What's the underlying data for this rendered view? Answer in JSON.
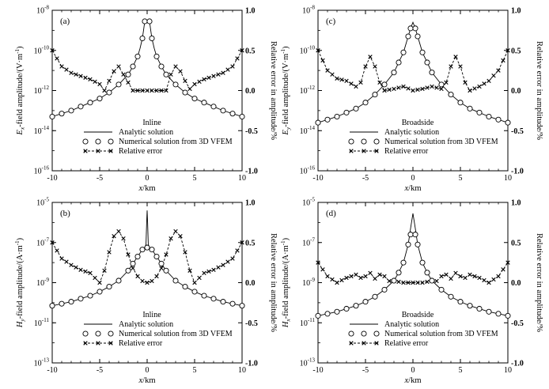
{
  "chart_data": [
    {
      "type": "line",
      "panel_label": "(a)",
      "ylabel": "Ex-field amplitude/(V·m⁻¹)",
      "ylabel_var": "E",
      "ylabel_sub": "x",
      "ylabel_rest": "-field amplitude/(V·m",
      "ylabel_unit_sup": "-1",
      "ylabel_close": ")",
      "y2label": "Relative error in amplitude/%",
      "xlabel": "x/km",
      "xlim": [
        -10,
        10
      ],
      "ylim_log_exp": [
        -16,
        -8
      ],
      "y_ticks": [
        {
          "base": "10",
          "exp": "-8"
        },
        {
          "base": "10",
          "exp": "-10"
        },
        {
          "base": "10",
          "exp": "-12"
        },
        {
          "base": "10",
          "exp": "-14"
        },
        {
          "base": "10",
          "exp": "-16"
        }
      ],
      "y2lim": [
        -1,
        1
      ],
      "y2_ticks": [
        "1.0",
        "0.5",
        "0.0",
        "-0.5",
        "-1.0"
      ],
      "x_ticks": [
        "-10",
        "-5",
        "0",
        "5",
        "10"
      ],
      "legend_title": "Inline",
      "legend": [
        "Analytic solution",
        "Numerical solution from 3D VFEM",
        "Relative error"
      ],
      "series": [
        {
          "name": "Analytic solution",
          "axis": "log",
          "x": [
            -10,
            -9,
            -8,
            -7,
            -6,
            -5,
            -4,
            -3,
            -2,
            -1.5,
            -1,
            -0.75,
            -0.5,
            -0.35,
            -0.25,
            0,
            0.25,
            0.35,
            0.5,
            0.75,
            1,
            1.5,
            2,
            3,
            4,
            5,
            6,
            7,
            8,
            9,
            10
          ],
          "log10": [
            -13.3,
            -13.15,
            -13.0,
            -12.8,
            -12.6,
            -12.4,
            -12.1,
            -11.7,
            -11.2,
            -10.8,
            -10.3,
            -9.9,
            -9.4,
            -8.9,
            -8.55,
            -8.55,
            -8.55,
            -8.9,
            -9.4,
            -9.9,
            -10.3,
            -10.8,
            -11.2,
            -11.7,
            -12.1,
            -12.4,
            -12.6,
            -12.8,
            -13.0,
            -13.15,
            -13.3
          ]
        },
        {
          "name": "Numerical solution from 3D VFEM",
          "axis": "log",
          "x": [
            -10,
            -9,
            -8,
            -7,
            -6,
            -5,
            -4,
            -3,
            -2,
            -1.5,
            -1,
            -0.5,
            -0.25,
            0.25,
            0.5,
            1,
            1.5,
            2,
            3,
            4,
            5,
            6,
            7,
            8,
            9,
            10
          ],
          "log10": [
            -13.3,
            -13.15,
            -13.0,
            -12.8,
            -12.6,
            -12.4,
            -12.1,
            -11.7,
            -11.2,
            -10.8,
            -10.3,
            -9.4,
            -8.55,
            -8.55,
            -9.4,
            -10.3,
            -10.8,
            -11.2,
            -11.7,
            -12.1,
            -12.4,
            -12.6,
            -12.8,
            -13.0,
            -13.15,
            -13.3
          ]
        },
        {
          "name": "Relative error",
          "axis": "linear",
          "x": [
            -10,
            -9,
            -8,
            -7,
            -6,
            -5,
            -4.5,
            -4,
            -3.5,
            -3,
            -2.5,
            -2,
            -1.5,
            -1,
            -0.5,
            0,
            0.5,
            1,
            1.5,
            2,
            2.5,
            3,
            3.5,
            4,
            4.5,
            5,
            6,
            7,
            8,
            9,
            10
          ],
          "values": [
            0.5,
            0.3,
            0.22,
            0.18,
            0.14,
            0.08,
            0.0,
            0.12,
            0.24,
            0.3,
            0.2,
            0.1,
            0.0,
            0.0,
            0.0,
            0.0,
            0.0,
            0.0,
            0.0,
            0.0,
            0.2,
            0.3,
            0.24,
            0.12,
            0.02,
            0.08,
            0.14,
            0.18,
            0.22,
            0.3,
            0.5
          ]
        }
      ]
    },
    {
      "type": "line",
      "panel_label": "(c)",
      "ylabel": "Ey-field amplitude/(V·m⁻¹)",
      "ylabel_var": "E",
      "ylabel_sub": "y",
      "ylabel_rest": "-field amplitude/(V·m",
      "ylabel_unit_sup": "-1",
      "ylabel_close": ")",
      "y2label": "Relative error in amplitude/%",
      "xlabel": "x/km",
      "xlim": [
        -10,
        10
      ],
      "ylim_log_exp": [
        -16,
        -8
      ],
      "y_ticks": [
        {
          "base": "10",
          "exp": "-8"
        },
        {
          "base": "10",
          "exp": "-10"
        },
        {
          "base": "10",
          "exp": "-12"
        },
        {
          "base": "10",
          "exp": "-14"
        },
        {
          "base": "10",
          "exp": "-16"
        }
      ],
      "y2lim": [
        -1,
        1
      ],
      "y2_ticks": [
        "1.0",
        "0.5",
        "0.0",
        "-0.5",
        "-1.0"
      ],
      "x_ticks": [
        "-10",
        "-5",
        "0",
        "5",
        "10"
      ],
      "legend_title": "Broadside",
      "legend": [
        "Analytic solution",
        "Numerical solution from 3D VFEM",
        "Relative error"
      ],
      "series": [
        {
          "name": "Analytic solution",
          "axis": "log",
          "x": [
            -10,
            -9,
            -8,
            -7,
            -6,
            -5,
            -4,
            -3,
            -2,
            -1.5,
            -1,
            -0.5,
            -0.25,
            0,
            0.25,
            0.5,
            1,
            1.5,
            2,
            3,
            4,
            5,
            6,
            7,
            8,
            9,
            10
          ],
          "log10": [
            -13.6,
            -13.45,
            -13.3,
            -13.1,
            -12.9,
            -12.6,
            -12.2,
            -11.7,
            -11.1,
            -10.6,
            -10.1,
            -9.3,
            -8.9,
            -8.6,
            -8.9,
            -9.3,
            -10.1,
            -10.6,
            -11.1,
            -11.7,
            -12.2,
            -12.6,
            -12.9,
            -13.1,
            -13.3,
            -13.45,
            -13.6
          ]
        },
        {
          "name": "Numerical solution from 3D VFEM",
          "axis": "log",
          "x": [
            -10,
            -9,
            -8,
            -7,
            -6,
            -5,
            -4,
            -3,
            -2,
            -1.5,
            -1,
            -0.5,
            -0.25,
            0.25,
            0.5,
            1,
            1.5,
            2,
            3,
            4,
            5,
            6,
            7,
            8,
            9,
            10
          ],
          "log10": [
            -13.6,
            -13.45,
            -13.3,
            -13.1,
            -12.9,
            -12.6,
            -12.2,
            -11.7,
            -11.1,
            -10.6,
            -10.1,
            -9.3,
            -8.9,
            -8.9,
            -9.3,
            -10.1,
            -10.6,
            -11.1,
            -11.7,
            -12.2,
            -12.6,
            -12.9,
            -13.1,
            -13.3,
            -13.45,
            -13.6
          ]
        },
        {
          "name": "Relative error",
          "axis": "linear",
          "x": [
            -10,
            -9,
            -8,
            -7,
            -6,
            -5.5,
            -5,
            -4.5,
            -4,
            -3.5,
            -3,
            -2,
            -1,
            0,
            1,
            2,
            3,
            3.5,
            4,
            4.5,
            5,
            5.5,
            6,
            7,
            8,
            9,
            10
          ],
          "values": [
            0.5,
            0.25,
            0.15,
            0.12,
            0.05,
            0.1,
            0.3,
            0.42,
            0.3,
            0.1,
            0.0,
            0.02,
            0.05,
            0.0,
            0.02,
            0.05,
            0.02,
            0.1,
            0.3,
            0.42,
            0.3,
            0.1,
            0.0,
            0.05,
            0.12,
            0.25,
            0.5
          ]
        }
      ]
    },
    {
      "type": "line",
      "panel_label": "(b)",
      "ylabel": "Hy-field amplitude/(A·m⁻¹)",
      "ylabel_var": "H",
      "ylabel_sub": "y",
      "ylabel_rest": "-field amplitude/(A·m",
      "ylabel_unit_sup": "-1",
      "ylabel_close": ")",
      "y2label": "Relative error in amplitude/%",
      "xlabel": "x/km",
      "xlim": [
        -10,
        10
      ],
      "ylim_log_exp": [
        -13,
        -5
      ],
      "y_ticks": [
        {
          "base": "10",
          "exp": "-5"
        },
        {
          "base": "10",
          "exp": "-7"
        },
        {
          "base": "10",
          "exp": "-9"
        },
        {
          "base": "10",
          "exp": "-11"
        },
        {
          "base": "10",
          "exp": "-13"
        }
      ],
      "y2lim": [
        -1,
        1
      ],
      "y2_ticks": [
        "1.0",
        "0.5",
        "0.0",
        "-0.5",
        "-1.0"
      ],
      "x_ticks": [
        "-10",
        "-5",
        "0",
        "5",
        "10"
      ],
      "legend_title": "Inline",
      "legend": [
        "Analytic solution",
        "Numerical solution from 3D VFEM",
        "Relative error"
      ],
      "series": [
        {
          "name": "Analytic solution",
          "axis": "log",
          "x": [
            -10,
            -9,
            -8,
            -7,
            -6,
            -5,
            -4,
            -3,
            -2,
            -1.5,
            -1,
            -0.5,
            -0.25,
            -0.12,
            -0.05,
            0,
            0.05,
            0.12,
            0.25,
            0.5,
            1,
            1.5,
            2,
            3,
            4,
            5,
            6,
            7,
            8,
            9,
            10
          ],
          "log10": [
            -10.15,
            -10.05,
            -9.95,
            -9.8,
            -9.65,
            -9.45,
            -9.2,
            -8.9,
            -8.4,
            -8.05,
            -7.7,
            -7.35,
            -7.25,
            -7.1,
            -6.0,
            -5.4,
            -6.0,
            -7.1,
            -7.25,
            -7.35,
            -7.7,
            -8.05,
            -8.4,
            -8.9,
            -9.2,
            -9.45,
            -9.65,
            -9.8,
            -9.95,
            -10.05,
            -10.15
          ]
        },
        {
          "name": "Numerical solution from 3D VFEM",
          "axis": "log",
          "x": [
            -10,
            -9,
            -8,
            -7,
            -6,
            -5,
            -4,
            -3,
            -2,
            -1.5,
            -1,
            -0.5,
            0,
            0.5,
            1,
            1.5,
            2,
            3,
            4,
            5,
            6,
            7,
            8,
            9,
            10
          ],
          "log10": [
            -10.15,
            -10.05,
            -9.95,
            -9.8,
            -9.65,
            -9.45,
            -9.2,
            -8.9,
            -8.4,
            -8.05,
            -7.7,
            -7.35,
            -7.25,
            -7.35,
            -7.7,
            -8.05,
            -8.4,
            -8.9,
            -9.2,
            -9.45,
            -9.65,
            -9.8,
            -9.95,
            -10.05,
            -10.15
          ]
        },
        {
          "name": "Relative error",
          "axis": "linear",
          "x": [
            -10,
            -9,
            -8,
            -7,
            -6,
            -5,
            -4.5,
            -4,
            -3.5,
            -3,
            -2.5,
            -2,
            -1.5,
            -1,
            -0.5,
            0,
            0.5,
            1,
            1.5,
            2,
            2.5,
            3,
            3.5,
            4,
            4.5,
            5,
            6,
            7,
            8,
            9,
            10
          ],
          "values": [
            0.5,
            0.3,
            0.22,
            0.16,
            0.12,
            0.0,
            0.15,
            0.38,
            0.58,
            0.64,
            0.55,
            0.35,
            0.18,
            0.08,
            0.02,
            0.0,
            0.02,
            0.08,
            0.18,
            0.35,
            0.55,
            0.64,
            0.58,
            0.38,
            0.15,
            0.0,
            0.12,
            0.16,
            0.22,
            0.3,
            0.5
          ]
        }
      ]
    },
    {
      "type": "line",
      "panel_label": "(d)",
      "ylabel": "Hx-field amplitude/(A·m⁻¹)",
      "ylabel_var": "H",
      "ylabel_sub": "x",
      "ylabel_rest": "-field amplitude/(A·m",
      "ylabel_unit_sup": "-1",
      "ylabel_close": ")",
      "y2label": "Relative error in amplitude/%",
      "xlabel": "x/km",
      "xlim": [
        -10,
        10
      ],
      "ylim_log_exp": [
        -13,
        -5
      ],
      "y_ticks": [
        {
          "base": "10",
          "exp": "-5"
        },
        {
          "base": "10",
          "exp": "-7"
        },
        {
          "base": "10",
          "exp": "-9"
        },
        {
          "base": "10",
          "exp": "-11"
        },
        {
          "base": "10",
          "exp": "-13"
        }
      ],
      "y2lim": [
        -1,
        1
      ],
      "y2_ticks": [
        "1.0",
        "0.5",
        "0.0",
        "-0.5",
        "-1.0"
      ],
      "x_ticks": [
        "-10",
        "-5",
        "0",
        "5",
        "10"
      ],
      "legend_title": "Broadside",
      "legend": [
        "Analytic solution",
        "Numerical solution from 3D VFEM",
        "Relative error"
      ],
      "series": [
        {
          "name": "Analytic solution",
          "axis": "log",
          "x": [
            -10,
            -9,
            -8,
            -7,
            -6,
            -5,
            -4,
            -3,
            -2,
            -1.5,
            -1,
            -0.5,
            -0.25,
            0,
            0.25,
            0.5,
            1,
            1.5,
            2,
            3,
            4,
            5,
            6,
            7,
            8,
            9,
            10
          ],
          "log10": [
            -10.65,
            -10.55,
            -10.45,
            -10.3,
            -10.15,
            -9.95,
            -9.7,
            -9.35,
            -8.9,
            -8.5,
            -8.0,
            -7.1,
            -6.3,
            -5.55,
            -6.3,
            -7.1,
            -8.0,
            -8.5,
            -8.9,
            -9.35,
            -9.7,
            -9.95,
            -10.15,
            -10.3,
            -10.45,
            -10.55,
            -10.65
          ]
        },
        {
          "name": "Numerical solution from 3D VFEM",
          "axis": "log",
          "x": [
            -10,
            -9,
            -8,
            -7,
            -6,
            -5,
            -4,
            -3,
            -2,
            -1.5,
            -1,
            -0.5,
            -0.25,
            0.25,
            0.5,
            1,
            1.5,
            2,
            3,
            4,
            5,
            6,
            7,
            8,
            9,
            10
          ],
          "log10": [
            -10.65,
            -10.55,
            -10.45,
            -10.3,
            -10.15,
            -9.95,
            -9.7,
            -9.35,
            -8.9,
            -8.5,
            -8.0,
            -7.1,
            -6.6,
            -6.6,
            -7.1,
            -8.0,
            -8.5,
            -8.9,
            -9.35,
            -9.7,
            -9.95,
            -10.15,
            -10.3,
            -10.45,
            -10.55,
            -10.65
          ]
        },
        {
          "name": "Relative error",
          "axis": "linear",
          "x": [
            -10,
            -9,
            -8,
            -7,
            -6,
            -5.5,
            -5,
            -4.5,
            -4,
            -3.5,
            -3,
            -2.5,
            -2,
            -1,
            0,
            1,
            2,
            2.5,
            3,
            3.5,
            4,
            4.5,
            5,
            5.5,
            6,
            7,
            8,
            9,
            10
          ],
          "values": [
            0.25,
            0.08,
            0.0,
            0.06,
            0.1,
            0.06,
            0.08,
            0.12,
            0.05,
            0.1,
            0.08,
            0.02,
            0.02,
            0.0,
            0.0,
            0.0,
            0.02,
            0.02,
            0.08,
            0.1,
            0.05,
            0.12,
            0.08,
            0.06,
            0.1,
            0.06,
            0.0,
            0.08,
            0.25
          ]
        }
      ]
    }
  ]
}
